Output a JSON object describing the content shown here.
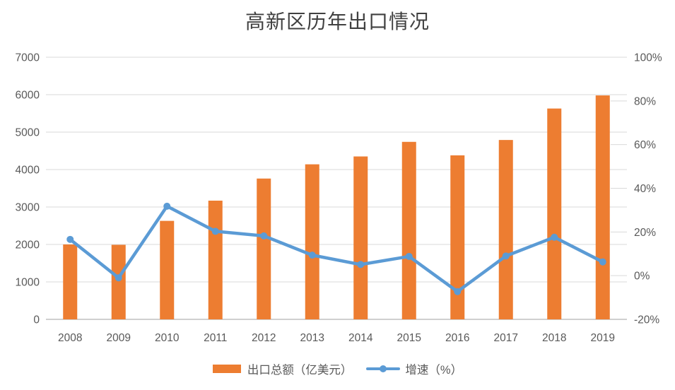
{
  "title": "高新区历年出口情况",
  "legend": {
    "bar_label": "出口总额（亿美元）",
    "line_label": "增速（%）"
  },
  "colors": {
    "bar": "#ED7D31",
    "line": "#5B9BD5",
    "grid": "#D9D9D9",
    "axis_line": "#C0C0C0",
    "axis_text": "#595959",
    "title_text": "#404040",
    "background": "#FFFFFF"
  },
  "chart_data": {
    "type": "bar",
    "subtype": "bar-line-combo",
    "title": "高新区历年出口情况",
    "categories": [
      "2008",
      "2009",
      "2010",
      "2011",
      "2012",
      "2013",
      "2014",
      "2015",
      "2016",
      "2017",
      "2018",
      "2019"
    ],
    "series": [
      {
        "name": "出口总额（亿美元）",
        "type": "bar",
        "axis": "left",
        "values": [
          2000,
          1990,
          2630,
          3170,
          3760,
          4140,
          4350,
          4740,
          4380,
          4790,
          5630,
          5980
        ]
      },
      {
        "name": "增速（%）",
        "type": "line",
        "axis": "right",
        "values": [
          16.6,
          -1.0,
          31.8,
          20.3,
          18.2,
          9.4,
          5.1,
          8.8,
          -7.3,
          9.0,
          17.6,
          6.3
        ]
      }
    ],
    "left_axis": {
      "min": 0,
      "max": 7000,
      "step": 1000,
      "tick_labels": [
        "0",
        "1000",
        "2000",
        "3000",
        "4000",
        "5000",
        "6000",
        "7000"
      ]
    },
    "right_axis": {
      "min": -20,
      "max": 100,
      "step": 20,
      "tick_labels": [
        "-20%",
        "0%",
        "20%",
        "40%",
        "60%",
        "80%",
        "100%"
      ]
    },
    "grid": true,
    "legend_position": "bottom"
  }
}
